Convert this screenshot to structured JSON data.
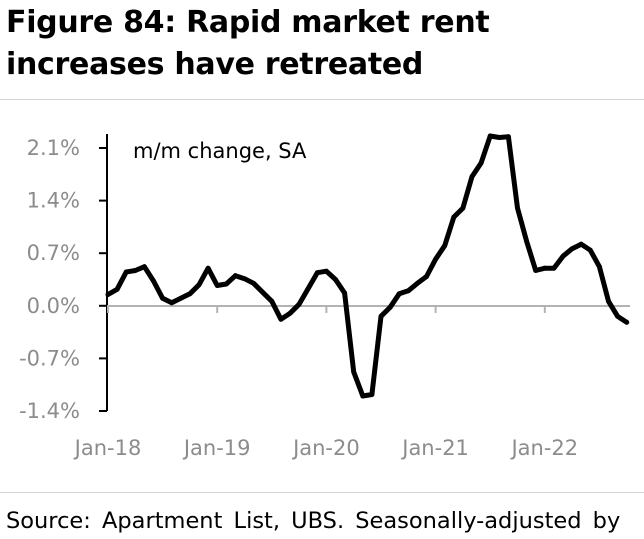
{
  "header": {
    "title": "Figure 84: Rapid market rent increases have retreated"
  },
  "footer": {
    "source": "Source: Apartment List, UBS. Seasonally-adjusted by"
  },
  "chart_data": {
    "type": "line",
    "title": "Figure 84: Rapid market rent increases have retreated",
    "annotation": "m/m change, SA",
    "xlabel": "",
    "ylabel": "",
    "x_ticks": [
      "Jan-18",
      "Jan-19",
      "Jan-20",
      "Jan-21",
      "Jan-22"
    ],
    "y_ticks": [
      "2.1%",
      "1.4%",
      "0.7%",
      "0.0%",
      "-0.7%",
      "-1.4%"
    ],
    "y_tick_values": [
      2.1,
      1.4,
      0.7,
      0.0,
      -0.7,
      -1.4
    ],
    "ylim": [
      -1.4,
      2.1
    ],
    "xlim": [
      "Jan-18",
      "Oct-22"
    ],
    "grid": false,
    "legend": "none",
    "line_color": "#000000",
    "series": [
      {
        "x": [
          "Jan-18",
          "Feb-18",
          "Mar-18",
          "Apr-18",
          "May-18",
          "Jun-18",
          "Jul-18",
          "Aug-18",
          "Sep-18",
          "Oct-18",
          "Nov-18",
          "Dec-18",
          "Jan-19",
          "Feb-19",
          "Mar-19",
          "Apr-19",
          "May-19",
          "Jun-19",
          "Jul-19",
          "Aug-19",
          "Sep-19",
          "Oct-19",
          "Nov-19",
          "Dec-19",
          "Jan-20",
          "Feb-20",
          "Mar-20",
          "Apr-20",
          "May-20",
          "Jun-20",
          "Jul-20",
          "Aug-20",
          "Sep-20",
          "Oct-20",
          "Nov-20",
          "Dec-20",
          "Jan-21",
          "Feb-21",
          "Mar-21",
          "Apr-21",
          "May-21",
          "Jun-21",
          "Jul-21",
          "Aug-21",
          "Sep-21",
          "Oct-21",
          "Nov-21",
          "Dec-21",
          "Jan-22",
          "Feb-22",
          "Mar-22",
          "Apr-22",
          "May-22",
          "Jun-22",
          "Jul-22",
          "Aug-22",
          "Sep-22",
          "Oct-22"
        ],
        "values": [
          0.15,
          0.22,
          0.45,
          0.47,
          0.52,
          0.33,
          0.1,
          0.04,
          0.1,
          0.16,
          0.28,
          0.5,
          0.27,
          0.29,
          0.4,
          0.36,
          0.3,
          0.18,
          0.06,
          -0.18,
          -0.1,
          0.02,
          0.23,
          0.44,
          0.46,
          0.35,
          0.17,
          -0.88,
          -1.2,
          -1.18,
          -0.14,
          -0.02,
          0.16,
          0.2,
          0.3,
          0.39,
          0.62,
          0.8,
          1.18,
          1.3,
          1.72,
          1.9,
          2.26,
          2.24,
          2.25,
          1.3,
          0.86,
          0.47,
          0.5,
          0.5,
          0.66,
          0.76,
          0.82,
          0.74,
          0.52,
          0.06,
          -0.14,
          -0.22
        ]
      }
    ]
  }
}
